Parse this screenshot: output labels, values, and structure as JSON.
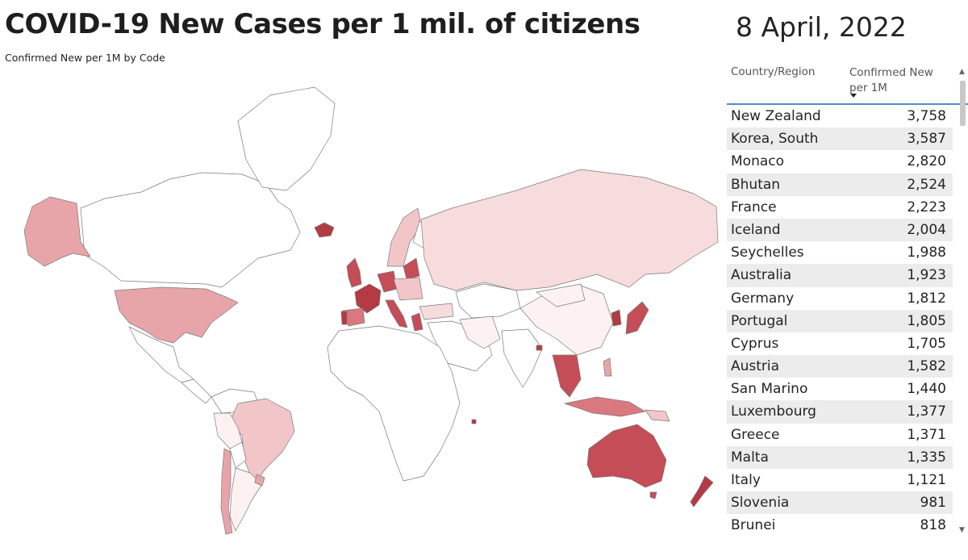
{
  "header": {
    "title": "COVID-19 New Cases per 1 mil. of citizens",
    "date": "8 April, 2022"
  },
  "map": {
    "subtitle": "Confirmed New per 1M by Code",
    "colors": {
      "none": "#ffffff",
      "lightest": "#fdf1f1",
      "light": "#f7dcdd",
      "medium_light": "#f2c6c8",
      "medium": "#e8a5a9",
      "medium_dark": "#d9797f",
      "dark": "#c44d57",
      "darkest": "#b43a44",
      "outline": "#7a7a7a"
    }
  },
  "table": {
    "column_country": "Country/Region",
    "column_value": "Confirmed New per 1M",
    "sort": "descending",
    "rows": [
      {
        "country": "New Zealand",
        "value": "3,758"
      },
      {
        "country": "Korea, South",
        "value": "3,587"
      },
      {
        "country": "Monaco",
        "value": "2,820"
      },
      {
        "country": "Bhutan",
        "value": "2,524"
      },
      {
        "country": "France",
        "value": "2,223"
      },
      {
        "country": "Iceland",
        "value": "2,004"
      },
      {
        "country": "Seychelles",
        "value": "1,988"
      },
      {
        "country": "Australia",
        "value": "1,923"
      },
      {
        "country": "Germany",
        "value": "1,812"
      },
      {
        "country": "Portugal",
        "value": "1,805"
      },
      {
        "country": "Cyprus",
        "value": "1,705"
      },
      {
        "country": "Austria",
        "value": "1,582"
      },
      {
        "country": "San Marino",
        "value": "1,440"
      },
      {
        "country": "Luxembourg",
        "value": "1,377"
      },
      {
        "country": "Greece",
        "value": "1,371"
      },
      {
        "country": "Malta",
        "value": "1,335"
      },
      {
        "country": "Italy",
        "value": "1,121"
      },
      {
        "country": "Slovenia",
        "value": "981"
      },
      {
        "country": "Brunei",
        "value": "818"
      }
    ]
  }
}
